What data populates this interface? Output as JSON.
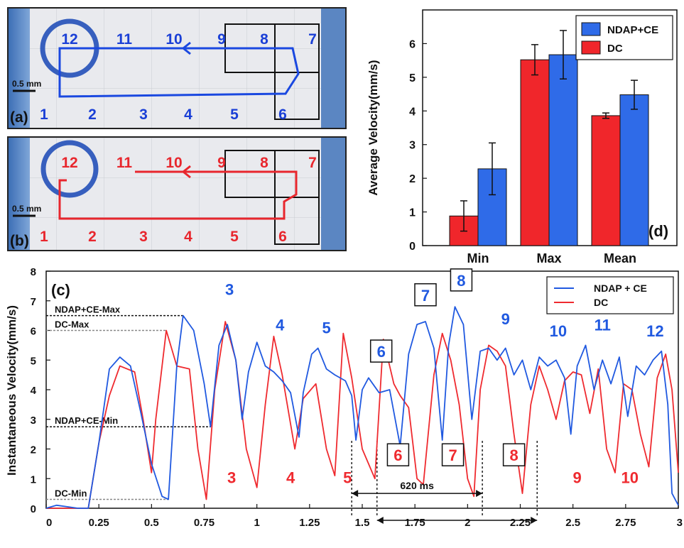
{
  "photo_a": {
    "label": "(a)",
    "scale_label": "0.5 mm",
    "top_numbers": [
      "12",
      "11",
      "10",
      "9",
      "8",
      "7"
    ],
    "bottom_numbers": [
      "1",
      "2",
      "3",
      "4",
      "5",
      "6"
    ],
    "color": "#1a3fd6"
  },
  "photo_b": {
    "label": "(b)",
    "scale_label": "0.5 mm",
    "top_numbers": [
      "12",
      "11",
      "10",
      "9",
      "8",
      "7"
    ],
    "bottom_numbers": [
      "1",
      "2",
      "3",
      "4",
      "5",
      "6"
    ],
    "color": "#e8262d"
  },
  "chart_data": [
    {
      "type": "bar",
      "panel_label": "(d)",
      "categories": [
        "Min",
        "Max",
        "Mean"
      ],
      "ylabel": "Average Velocity(mm/s)",
      "ylim": [
        0,
        7
      ],
      "yticks": [
        "0",
        "1",
        "2",
        "3",
        "4",
        "5",
        "6"
      ],
      "legend_position": "top-right",
      "series": [
        {
          "name": "DC",
          "color": "#f0262b",
          "values": [
            0.88,
            5.52,
            3.86
          ],
          "errors": [
            0.45,
            0.45,
            0.08
          ]
        },
        {
          "name": "NDAP+CE",
          "color": "#2f6be8",
          "values": [
            2.28,
            5.67,
            4.48
          ],
          "errors": [
            0.77,
            0.72,
            0.43
          ]
        }
      ],
      "legend_order": [
        "NDAP+CE",
        "DC"
      ]
    },
    {
      "type": "line",
      "panel_label": "(c)",
      "ylabel": "Instantaneous Velocity(mm/s)",
      "xlim": [
        0,
        3
      ],
      "ylim": [
        0,
        8
      ],
      "xticks": [
        "0",
        "0.25",
        "0.5",
        "0.75",
        "1",
        "1.25",
        "1.5",
        "1.75",
        "2",
        "2.25",
        "2.5",
        "2.75",
        "3"
      ],
      "yticks": [
        "0",
        "1",
        "2",
        "3",
        "4",
        "5",
        "6",
        "7",
        "8"
      ],
      "legend_position": "top-right",
      "series": [
        {
          "name": "NDAP + CE",
          "color": "#2059e0",
          "x": [
            0,
            0.05,
            0.1,
            0.15,
            0.2,
            0.25,
            0.3,
            0.35,
            0.4,
            0.45,
            0.5,
            0.55,
            0.58,
            0.62,
            0.65,
            0.7,
            0.75,
            0.78,
            0.82,
            0.86,
            0.9,
            0.93,
            0.96,
            1.0,
            1.04,
            1.08,
            1.12,
            1.16,
            1.2,
            1.22,
            1.26,
            1.29,
            1.33,
            1.37,
            1.42,
            1.45,
            1.47,
            1.5,
            1.53,
            1.58,
            1.63,
            1.68,
            1.72,
            1.76,
            1.8,
            1.84,
            1.88,
            1.91,
            1.94,
            1.98,
            2.02,
            2.06,
            2.1,
            2.14,
            2.18,
            2.22,
            2.26,
            2.3,
            2.34,
            2.38,
            2.42,
            2.46,
            2.49,
            2.52,
            2.56,
            2.6,
            2.64,
            2.68,
            2.72,
            2.76,
            2.8,
            2.84,
            2.88,
            2.92,
            2.95,
            2.97,
            3.0
          ],
          "y": [
            0,
            0.1,
            0.05,
            0,
            0,
            2.2,
            4.7,
            5.1,
            4.8,
            3.2,
            1.5,
            0.4,
            0.3,
            4.8,
            6.5,
            6.0,
            4.2,
            2.75,
            5.5,
            6.2,
            5.0,
            3.0,
            4.6,
            5.6,
            4.8,
            4.6,
            4.3,
            3.9,
            2.4,
            3.9,
            5.2,
            5.4,
            4.7,
            4.5,
            4.3,
            3.8,
            2.3,
            4.0,
            4.4,
            3.9,
            4.0,
            2.1,
            5.2,
            6.2,
            6.3,
            5.4,
            2.3,
            5.5,
            6.8,
            6.2,
            3.0,
            5.3,
            5.4,
            5.0,
            5.4,
            4.5,
            5.0,
            4.0,
            5.1,
            4.8,
            5.0,
            4.4,
            2.5,
            4.8,
            5.5,
            4.0,
            5.0,
            4.2,
            5.1,
            3.1,
            4.8,
            4.5,
            5.0,
            5.3,
            3.5,
            0.5,
            0.1
          ]
        },
        {
          "name": "DC",
          "color": "#ef2a2f",
          "x": [
            0,
            0.1,
            0.2,
            0.25,
            0.3,
            0.35,
            0.42,
            0.46,
            0.5,
            0.52,
            0.57,
            0.62,
            0.68,
            0.72,
            0.76,
            0.8,
            0.85,
            0.9,
            0.95,
            1.0,
            1.04,
            1.08,
            1.12,
            1.18,
            1.22,
            1.28,
            1.33,
            1.37,
            1.41,
            1.45,
            1.5,
            1.53,
            1.56,
            1.6,
            1.65,
            1.68,
            1.72,
            1.76,
            1.79,
            1.84,
            1.88,
            1.92,
            1.96,
            2.0,
            2.03,
            2.06,
            2.1,
            2.14,
            2.18,
            2.22,
            2.26,
            2.3,
            2.34,
            2.38,
            2.42,
            2.46,
            2.5,
            2.54,
            2.58,
            2.62,
            2.66,
            2.7,
            2.74,
            2.78,
            2.82,
            2.86,
            2.9,
            2.94,
            2.97,
            3.0
          ],
          "y": [
            0,
            0,
            0,
            2.2,
            3.8,
            4.8,
            4.6,
            3.0,
            1.2,
            3.0,
            6.0,
            4.8,
            4.7,
            2.0,
            0.3,
            4.0,
            6.3,
            5.0,
            2.0,
            0.7,
            3.5,
            5.8,
            4.5,
            2.0,
            3.7,
            4.2,
            2.0,
            1.1,
            5.9,
            4.4,
            2.0,
            1.5,
            1.0,
            5.7,
            4.2,
            3.8,
            3.4,
            1.0,
            0.8,
            4.5,
            5.9,
            5.0,
            3.5,
            1.0,
            0.4,
            4.0,
            5.5,
            5.3,
            4.8,
            2.5,
            0.5,
            3.5,
            4.8,
            4.0,
            3.0,
            4.3,
            4.6,
            4.5,
            3.2,
            4.7,
            2.0,
            1.2,
            4.2,
            4.0,
            2.5,
            1.4,
            4.4,
            5.2,
            4.0,
            1.2
          ]
        }
      ],
      "reference_lines": [
        {
          "label": "NDAP+CE-Max",
          "value": 6.5,
          "x_end": 0.65
        },
        {
          "label": "DC-Max",
          "value": 6.0,
          "x_end": 0.57
        },
        {
          "label": "NDAP+CE-Min",
          "value": 2.75,
          "x_end": 0.78
        },
        {
          "label": "DC-Min",
          "value": 0.3,
          "x_end": 0.58
        }
      ],
      "blue_annotations": [
        {
          "text": "3",
          "x": 0.87,
          "y": 7.2,
          "boxed": false
        },
        {
          "text": "4",
          "x": 1.11,
          "y": 6.0,
          "boxed": false
        },
        {
          "text": "5",
          "x": 1.33,
          "y": 5.9,
          "boxed": false
        },
        {
          "text": "6",
          "x": 1.59,
          "y": 5.1,
          "boxed": true
        },
        {
          "text": "7",
          "x": 1.8,
          "y": 7.0,
          "boxed": true
        },
        {
          "text": "8",
          "x": 1.97,
          "y": 7.5,
          "boxed": true
        },
        {
          "text": "9",
          "x": 2.18,
          "y": 6.2,
          "boxed": false
        },
        {
          "text": "10",
          "x": 2.43,
          "y": 5.8,
          "boxed": false
        },
        {
          "text": "11",
          "x": 2.64,
          "y": 6.0,
          "boxed": false
        },
        {
          "text": "12",
          "x": 2.89,
          "y": 5.8,
          "boxed": false
        }
      ],
      "red_annotations": [
        {
          "text": "3",
          "x": 0.88,
          "y": 0.85,
          "boxed": false
        },
        {
          "text": "4",
          "x": 1.16,
          "y": 0.85,
          "boxed": false
        },
        {
          "text": "5",
          "x": 1.43,
          "y": 0.85,
          "boxed": false
        },
        {
          "text": "6",
          "x": 1.67,
          "y": 1.6,
          "boxed": true
        },
        {
          "text": "7",
          "x": 1.93,
          "y": 1.6,
          "boxed": true
        },
        {
          "text": "8",
          "x": 2.22,
          "y": 1.6,
          "boxed": true
        },
        {
          "text": "9",
          "x": 2.52,
          "y": 0.85,
          "boxed": false
        },
        {
          "text": "10",
          "x": 2.77,
          "y": 0.85,
          "boxed": false
        }
      ],
      "interval_annotation": {
        "label": "620 ms",
        "x_start": 1.45,
        "x_end": 2.07
      },
      "dashed_markers_x": [
        1.45,
        1.57,
        2.07,
        2.33
      ]
    }
  ]
}
